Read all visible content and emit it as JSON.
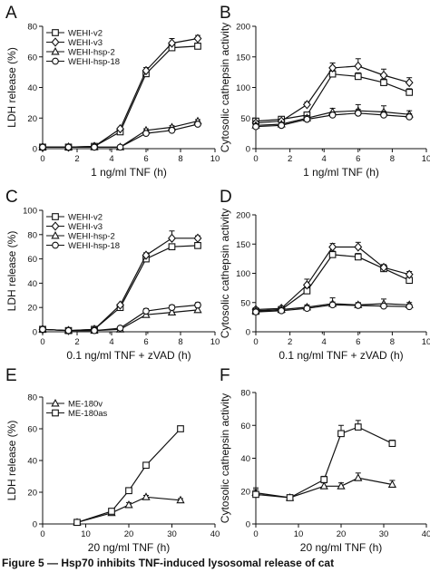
{
  "chart_data": [
    {
      "panel": "A",
      "type": "line",
      "xlabel": "1 ng/ml TNF (h)",
      "ylabel": "LDH release (%)",
      "xlim": [
        0,
        10
      ],
      "ylim": [
        0,
        80
      ],
      "xticks": [
        "0",
        "2",
        "4",
        "6",
        "8",
        "10"
      ],
      "yticks": [
        "0",
        "20",
        "40",
        "60",
        "80"
      ],
      "legend": "top-left",
      "series": [
        {
          "name": "WEHI-v2",
          "marker": "square",
          "x": [
            0,
            1.5,
            3,
            4.5,
            6,
            7.5,
            9
          ],
          "y": [
            1,
            1,
            1.5,
            11,
            49,
            66,
            67
          ],
          "err": [
            0,
            0,
            0,
            1,
            2,
            3,
            2
          ]
        },
        {
          "name": "WEHI-v3",
          "marker": "diamond",
          "x": [
            0,
            1.5,
            3,
            4.5,
            6,
            7.5,
            9
          ],
          "y": [
            1,
            1,
            1.5,
            13,
            51,
            69,
            72
          ],
          "err": [
            0,
            0,
            0,
            1,
            2,
            3,
            2
          ]
        },
        {
          "name": "WEHI-hsp-2",
          "marker": "triangle",
          "x": [
            0,
            1.5,
            3,
            4.5,
            6,
            7.5,
            9
          ],
          "y": [
            1,
            1,
            1,
            1,
            12,
            14,
            18
          ],
          "err": [
            0,
            0,
            0,
            0,
            1,
            1,
            1
          ]
        },
        {
          "name": "WEHI-hsp-18",
          "marker": "circle",
          "x": [
            0,
            1.5,
            3,
            4.5,
            6,
            7.5,
            9
          ],
          "y": [
            1,
            1,
            1,
            1,
            10,
            12,
            16
          ],
          "err": [
            0,
            0,
            0,
            0,
            1,
            1,
            1
          ]
        }
      ]
    },
    {
      "panel": "B",
      "type": "line",
      "xlabel": "1 ng/ml TNF (h)",
      "ylabel": "Cytosolic cathepsin activity",
      "xlim": [
        0,
        10
      ],
      "ylim": [
        0,
        200
      ],
      "xticks": [
        "0",
        "2",
        "4",
        "6",
        "8",
        "10"
      ],
      "yticks": [
        "0",
        "50",
        "100",
        "150",
        "200"
      ],
      "series": [
        {
          "marker": "square",
          "x": [
            0,
            1.5,
            3,
            4.5,
            6,
            7.5,
            9
          ],
          "y": [
            45,
            48,
            55,
            122,
            118,
            108,
            92
          ],
          "err": [
            3,
            3,
            4,
            6,
            6,
            6,
            6
          ]
        },
        {
          "marker": "diamond",
          "x": [
            0,
            1.5,
            3,
            4.5,
            6,
            7.5,
            9
          ],
          "y": [
            42,
            45,
            72,
            132,
            135,
            120,
            108
          ],
          "err": [
            3,
            3,
            4,
            8,
            12,
            10,
            8
          ]
        },
        {
          "marker": "triangle",
          "x": [
            0,
            1.5,
            3,
            4.5,
            6,
            7.5,
            9
          ],
          "y": [
            38,
            40,
            50,
            60,
            62,
            60,
            56
          ],
          "err": [
            3,
            3,
            4,
            6,
            10,
            10,
            6
          ]
        },
        {
          "marker": "circle",
          "x": [
            0,
            1.5,
            3,
            4.5,
            6,
            7.5,
            9
          ],
          "y": [
            36,
            38,
            48,
            55,
            58,
            55,
            52
          ],
          "err": [
            3,
            3,
            4,
            5,
            6,
            6,
            5
          ]
        }
      ]
    },
    {
      "panel": "C",
      "type": "line",
      "xlabel": "0.1 ng/ml TNF + zVAD (h)",
      "ylabel": "LDH release (%)",
      "xlim": [
        0,
        10
      ],
      "ylim": [
        0,
        100
      ],
      "xticks": [
        "0",
        "2",
        "4",
        "6",
        "8",
        "10"
      ],
      "yticks": [
        "0",
        "20",
        "40",
        "60",
        "80",
        "100"
      ],
      "legend": "top-left",
      "series": [
        {
          "name": "WEHI-v2",
          "marker": "square",
          "x": [
            0,
            1.5,
            3,
            4.5,
            6,
            7.5,
            9
          ],
          "y": [
            2,
            1,
            2,
            20,
            60,
            70,
            71
          ],
          "err": [
            0,
            0,
            0,
            1,
            2,
            2,
            2
          ]
        },
        {
          "name": "WEHI-v3",
          "marker": "diamond",
          "x": [
            0,
            1.5,
            3,
            4.5,
            6,
            7.5,
            9
          ],
          "y": [
            2,
            1,
            2,
            22,
            63,
            77,
            77
          ],
          "err": [
            0,
            0,
            0,
            1,
            2,
            6,
            2
          ]
        },
        {
          "name": "WEHI-hsp-2",
          "marker": "triangle",
          "x": [
            0,
            1.5,
            3,
            4.5,
            6,
            7.5,
            9
          ],
          "y": [
            2,
            1,
            1,
            2,
            14,
            16,
            18
          ],
          "err": [
            0,
            0,
            0,
            0,
            2,
            2,
            2
          ]
        },
        {
          "name": "WEHI-hsp-18",
          "marker": "circle",
          "x": [
            0,
            1.5,
            3,
            4.5,
            6,
            7.5,
            9
          ],
          "y": [
            2,
            1,
            1,
            3,
            17,
            20,
            22
          ],
          "err": [
            0,
            0,
            0,
            0,
            2,
            2,
            2
          ]
        }
      ]
    },
    {
      "panel": "D",
      "type": "line",
      "xlabel": "0.1 ng/ml TNF + zVAD (h)",
      "ylabel": "Cytosolic cathepsin activity",
      "xlim": [
        0,
        10
      ],
      "ylim": [
        0,
        200
      ],
      "xticks": [
        "0",
        "2",
        "4",
        "6",
        "8",
        "10"
      ],
      "yticks": [
        "0",
        "50",
        "100",
        "150",
        "200"
      ],
      "series": [
        {
          "marker": "square",
          "x": [
            0,
            1.5,
            3,
            4.5,
            6,
            7.5,
            9
          ],
          "y": [
            35,
            38,
            70,
            132,
            128,
            108,
            88
          ],
          "err": [
            3,
            3,
            6,
            6,
            6,
            5,
            5
          ]
        },
        {
          "marker": "diamond",
          "x": [
            0,
            1.5,
            3,
            4.5,
            6,
            7.5,
            9
          ],
          "y": [
            38,
            40,
            80,
            145,
            145,
            110,
            98
          ],
          "err": [
            3,
            3,
            10,
            6,
            8,
            5,
            5
          ]
        },
        {
          "marker": "triangle",
          "x": [
            0,
            1.5,
            3,
            4.5,
            6,
            7.5,
            9
          ],
          "y": [
            36,
            38,
            42,
            48,
            46,
            48,
            46
          ],
          "err": [
            3,
            3,
            4,
            10,
            4,
            8,
            4
          ]
        },
        {
          "marker": "circle",
          "x": [
            0,
            1.5,
            3,
            4.5,
            6,
            7.5,
            9
          ],
          "y": [
            34,
            36,
            40,
            46,
            45,
            44,
            43
          ],
          "err": [
            3,
            3,
            4,
            5,
            4,
            4,
            4
          ]
        }
      ]
    },
    {
      "panel": "E",
      "type": "line",
      "xlabel": "20 ng/ml TNF (h)",
      "ylabel": "LDH release (%)",
      "xlim": [
        0,
        40
      ],
      "ylim": [
        0,
        80
      ],
      "xticks": [
        "0",
        "10",
        "20",
        "30",
        "40"
      ],
      "yticks": [
        "0",
        "20",
        "40",
        "60",
        "80"
      ],
      "legend": "top-left",
      "series": [
        {
          "name": "ME-180v",
          "marker": "triangle",
          "x": [
            8,
            16,
            20,
            24,
            32
          ],
          "y": [
            1,
            7,
            12,
            17,
            15
          ],
          "err": [
            0.5,
            1,
            1.5,
            1,
            1
          ]
        },
        {
          "name": "ME-180as",
          "marker": "square",
          "x": [
            8,
            16,
            20,
            24,
            32
          ],
          "y": [
            1,
            8,
            21,
            37,
            60
          ],
          "err": [
            0.5,
            1,
            1,
            1.5,
            1
          ]
        }
      ]
    },
    {
      "panel": "F",
      "type": "line",
      "xlabel": "20 ng/ml TNF (h)",
      "ylabel": "Cytosolic cathepsin activity",
      "xlim": [
        0,
        40
      ],
      "ylim": [
        0,
        80
      ],
      "xticks": [
        "0",
        "10",
        "20",
        "30",
        "40"
      ],
      "yticks": [
        "0",
        "20",
        "40",
        "60",
        "80"
      ],
      "series": [
        {
          "marker": "triangle",
          "x": [
            0,
            8,
            16,
            20,
            24,
            32
          ],
          "y": [
            19,
            16,
            23,
            23,
            28,
            24
          ],
          "err": [
            3,
            1.5,
            2,
            2,
            3,
            2.5
          ]
        },
        {
          "marker": "square",
          "x": [
            0,
            8,
            16,
            20,
            24,
            32
          ],
          "y": [
            18,
            16,
            27,
            55,
            59,
            49
          ],
          "err": [
            3,
            1.5,
            2,
            5,
            4,
            2
          ]
        }
      ]
    }
  ],
  "caption": "Figure 5 — Hsp70 inhibits TNF-induced lysosomal release of cat"
}
